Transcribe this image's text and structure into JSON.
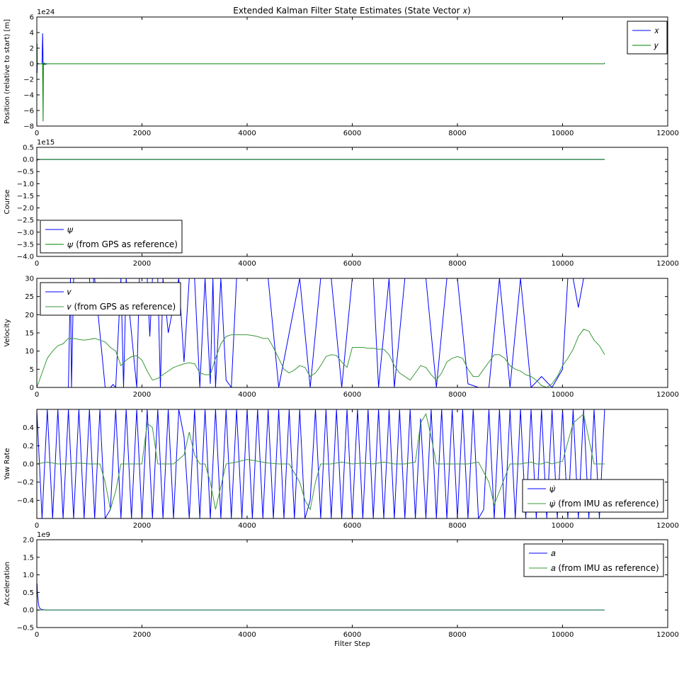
{
  "figure": {
    "title": "Extended Kalman Filter State Estimates (State Vector 𝑥)"
  },
  "colors": {
    "blue": "#0000ff",
    "green": "#008000",
    "lightgreen": "#3a9a3a"
  },
  "chart_data": [
    {
      "type": "line",
      "id": "position",
      "ylabel": "Position (relative to start) [m]",
      "xlabel": "",
      "offset_text": "1e24",
      "xlim": [
        0,
        12000
      ],
      "ylim": [
        -8,
        6
      ],
      "xticks": [
        "0",
        "2000",
        "4000",
        "6000",
        "8000",
        "10000",
        "12000"
      ],
      "yticks": [
        "6",
        "4",
        "2",
        "0",
        "−2",
        "−4",
        "−6",
        "−8"
      ],
      "legend": {
        "placement": "top-right"
      },
      "series": [
        {
          "name": "𝑥",
          "color": "#0000ff",
          "x": [
            0,
            5,
            10,
            20,
            60,
            100,
            110,
            120,
            125,
            130,
            140,
            200,
            400,
            2000,
            6000,
            10000,
            10790,
            10800
          ],
          "y": [
            0,
            -1.2,
            0.1,
            0,
            0,
            0,
            3.9,
            0.1,
            0,
            -0.1,
            0,
            0,
            0,
            0,
            0,
            0,
            0,
            0.1
          ]
        },
        {
          "name": "𝑦",
          "color": "#008000",
          "x": [
            0,
            5,
            10,
            20,
            60,
            100,
            110,
            120,
            125,
            130,
            140,
            150,
            200,
            400,
            2000,
            6000,
            10000,
            10790,
            10800
          ],
          "y": [
            0,
            2.6,
            -0.1,
            0,
            0,
            0,
            0,
            -7.4,
            0,
            0,
            0.1,
            -0.1,
            0,
            0,
            0,
            0,
            0,
            0,
            0.1
          ]
        }
      ]
    },
    {
      "type": "line",
      "id": "course",
      "ylabel": "Course",
      "xlabel": "",
      "offset_text": "1e15",
      "xlim": [
        0,
        12000
      ],
      "ylim": [
        -4.0,
        0.5
      ],
      "xticks": [
        "0",
        "2000",
        "4000",
        "6000",
        "8000",
        "10000",
        "12000"
      ],
      "yticks": [
        "0.5",
        "0.0",
        "−0.5",
        "−1.0",
        "−1.5",
        "−2.0",
        "−2.5",
        "−3.0",
        "−3.5",
        "−4.0"
      ],
      "legend": {
        "placement": "bottom-left"
      },
      "series": [
        {
          "name": "𝜓",
          "color": "#0000ff",
          "x": [
            0,
            5,
            15,
            10800
          ],
          "y": [
            0,
            -0.05,
            0,
            0
          ]
        },
        {
          "name": "𝜓 (from GPS as reference)",
          "color": "#008000",
          "x": [
            0,
            10800
          ],
          "y": [
            0,
            0
          ]
        }
      ]
    },
    {
      "type": "line",
      "id": "velocity",
      "ylabel": "Velocity",
      "xlabel": "",
      "offset_text": "",
      "xlim": [
        0,
        12000
      ],
      "ylim": [
        0,
        30
      ],
      "xticks": [
        "0",
        "2000",
        "4000",
        "6000",
        "8000",
        "10000",
        "12000"
      ],
      "yticks": [
        "30",
        "25",
        "20",
        "15",
        "10",
        "5",
        "0"
      ],
      "legend": {
        "placement": "top-left"
      },
      "series": [
        {
          "name": "𝑣",
          "color": "#0000ff",
          "x": [
            0,
            100,
            300,
            600,
            640,
            660,
            700,
            800,
            900,
            1000,
            1060,
            1080,
            1100,
            1300,
            1400,
            1450,
            1500,
            1600,
            1650,
            1700,
            1900,
            1950,
            2000,
            2100,
            2150,
            2200,
            2300,
            2350,
            2400,
            2500,
            2700,
            2800,
            2900,
            3000,
            3100,
            3200,
            3300,
            3350,
            3400,
            3500,
            3600,
            3700,
            3800,
            4000,
            4400,
            4600,
            5000,
            5200,
            5400,
            5600,
            5800,
            6000,
            6200,
            6400,
            6500,
            6700,
            6800,
            7000,
            7200,
            7400,
            7600,
            7800,
            8000,
            8200,
            8400,
            8600,
            8800,
            9000,
            9200,
            9400,
            9600,
            9800,
            10000,
            10100,
            10200,
            10300,
            10400,
            10500,
            10600,
            10700,
            10800
          ],
          "y": [
            0,
            0,
            0,
            0,
            30,
            0,
            30,
            30,
            30,
            30,
            20,
            30,
            30,
            0,
            0,
            0.8,
            0,
            30,
            0,
            30,
            0,
            30,
            30,
            30,
            14,
            30,
            30,
            0,
            30,
            15,
            30,
            7,
            30,
            30,
            0,
            30,
            1,
            30,
            0,
            30,
            2,
            0,
            30,
            30,
            30,
            0,
            30,
            0,
            30,
            30,
            0,
            30,
            30,
            30,
            0,
            30,
            0,
            30,
            30,
            30,
            0,
            30,
            30,
            1,
            0,
            0,
            30,
            0,
            30,
            0,
            3,
            0,
            5,
            30,
            30,
            22,
            30,
            30,
            30,
            30,
            30
          ]
        },
        {
          "name": "𝑣 (from GPS as reference)",
          "color": "#3a9a3a",
          "x": [
            0,
            100,
            200,
            300,
            400,
            500,
            600,
            700,
            800,
            900,
            1000,
            1100,
            1200,
            1300,
            1400,
            1500,
            1600,
            1700,
            1800,
            1900,
            2000,
            2100,
            2200,
            2300,
            2400,
            2500,
            2600,
            2700,
            2800,
            2900,
            3000,
            3100,
            3200,
            3300,
            3400,
            3500,
            3600,
            3700,
            3800,
            3900,
            4000,
            4100,
            4200,
            4300,
            4400,
            4500,
            4600,
            4700,
            4800,
            4900,
            5000,
            5100,
            5200,
            5300,
            5400,
            5500,
            5600,
            5700,
            5800,
            5900,
            6000,
            6100,
            6200,
            6300,
            6400,
            6500,
            6600,
            6700,
            6800,
            6900,
            7000,
            7100,
            7200,
            7300,
            7400,
            7500,
            7600,
            7700,
            7800,
            7900,
            8000,
            8100,
            8200,
            8300,
            8400,
            8500,
            8600,
            8700,
            8800,
            8900,
            9000,
            9100,
            9200,
            9300,
            9400,
            9500,
            9600,
            9700,
            9800,
            9900,
            10000,
            10100,
            10200,
            10300,
            10400,
            10500,
            10600,
            10700,
            10800
          ],
          "y": [
            0,
            4,
            8,
            10,
            11.5,
            12,
            13.5,
            13.5,
            13.2,
            13,
            13.2,
            13.5,
            13,
            12.5,
            11,
            10,
            6,
            7.5,
            8.5,
            8.7,
            7.5,
            4.5,
            2,
            2.5,
            3.5,
            4.5,
            5.5,
            6,
            6.5,
            6.8,
            6.5,
            4,
            3.5,
            3.5,
            8,
            12,
            14,
            14.5,
            14.5,
            14.5,
            14.5,
            14.3,
            14,
            13.5,
            13.5,
            11,
            8,
            5,
            4,
            4.8,
            6,
            5.5,
            3,
            4,
            6,
            8.5,
            9,
            8.8,
            7,
            5.5,
            11,
            11,
            11,
            10.8,
            10.8,
            10.5,
            10.5,
            9,
            6,
            4,
            3,
            2,
            4,
            6,
            5.5,
            3.5,
            2,
            4,
            7,
            8,
            8.5,
            8,
            5,
            3,
            3,
            5,
            7,
            9,
            9,
            8,
            6,
            5,
            4.5,
            3.5,
            3,
            2,
            0.5,
            0,
            1,
            3,
            6,
            8,
            10.5,
            14,
            16,
            15.5,
            13,
            11.5,
            9
          ]
        }
      ]
    },
    {
      "type": "line",
      "id": "yaw_rate",
      "ylabel": "Yaw Rate",
      "xlabel": "",
      "offset_text": "",
      "xlim": [
        0,
        12000
      ],
      "ylim": [
        -0.6,
        0.6
      ],
      "xticks": [
        "0",
        "2000",
        "4000",
        "6000",
        "8000",
        "10000",
        "12000"
      ],
      "yticks": [
        "0.4",
        "0.2",
        "0.0",
        "−0.2",
        "−0.4"
      ],
      "legend": {
        "placement": "bottom-right"
      },
      "series": [
        {
          "name": "𝜓̇",
          "color": "#0000ff",
          "x": [
            0,
            100,
            200,
            300,
            400,
            500,
            600,
            700,
            800,
            900,
            1000,
            1100,
            1200,
            1300,
            1400,
            1500,
            1600,
            1700,
            1800,
            1900,
            2000,
            2100,
            2200,
            2300,
            2400,
            2500,
            2600,
            2700,
            2800,
            2900,
            3000,
            3100,
            3200,
            3300,
            3400,
            3500,
            3600,
            3700,
            3800,
            3900,
            4000,
            4100,
            4200,
            4300,
            4400,
            4500,
            4600,
            4700,
            4800,
            4900,
            5000,
            5100,
            5200,
            5300,
            5400,
            5500,
            5600,
            5700,
            5800,
            5900,
            6000,
            6100,
            6200,
            6300,
            6400,
            6500,
            6600,
            6700,
            6800,
            6900,
            7000,
            7100,
            7200,
            7300,
            7400,
            7500,
            7600,
            7700,
            7800,
            7900,
            8000,
            8100,
            8200,
            8300,
            8400,
            8500,
            8600,
            8700,
            8800,
            8900,
            9000,
            9100,
            9200,
            9300,
            9400,
            9500,
            9600,
            9700,
            9800,
            9900,
            10000,
            10100,
            10200,
            10300,
            10400,
            10500,
            10600,
            10700,
            10800
          ],
          "y": [
            0.6,
            -0.6,
            0.6,
            -0.6,
            0.6,
            -0.6,
            0.6,
            -0.6,
            0.6,
            -0.6,
            0.6,
            -0.6,
            0.6,
            -0.6,
            -0.5,
            0.6,
            -0.6,
            0.6,
            -0.6,
            0.6,
            -0.6,
            0.6,
            -0.6,
            0.6,
            -0.6,
            0.6,
            -0.6,
            0.6,
            0.3,
            -0.6,
            0.6,
            -0.6,
            0.6,
            -0.6,
            0.6,
            -0.6,
            0.6,
            -0.6,
            0.6,
            -0.6,
            0.6,
            -0.6,
            0.6,
            -0.6,
            0.6,
            -0.6,
            0.6,
            -0.6,
            0.6,
            -0.6,
            0.6,
            -0.6,
            -0.4,
            0.6,
            -0.6,
            0.6,
            -0.6,
            0.6,
            -0.6,
            0.6,
            -0.6,
            0.6,
            -0.6,
            0.6,
            -0.6,
            0.6,
            -0.6,
            0.6,
            -0.6,
            0.6,
            -0.6,
            0.6,
            -0.6,
            0.5,
            -0.6,
            0.6,
            -0.6,
            0.6,
            -0.6,
            0.6,
            -0.6,
            0.6,
            -0.6,
            0.6,
            -0.6,
            -0.5,
            0.6,
            -0.6,
            0.6,
            -0.6,
            0.6,
            -0.6,
            0.6,
            -0.6,
            0.6,
            -0.6,
            0.6,
            -0.6,
            0.6,
            -0.6,
            0.6,
            -0.6,
            0.6,
            -0.6,
            0.6,
            -0.6,
            0.6,
            -0.6,
            0.6
          ]
        },
        {
          "name": "𝜓̇ (from IMU as reference)",
          "color": "#3a9a3a",
          "x": [
            0,
            200,
            400,
            600,
            800,
            1000,
            1200,
            1300,
            1400,
            1500,
            1600,
            1800,
            2000,
            2100,
            2200,
            2300,
            2400,
            2600,
            2800,
            2900,
            3000,
            3100,
            3200,
            3300,
            3400,
            3600,
            3800,
            4000,
            4200,
            4400,
            4600,
            4800,
            5000,
            5100,
            5200,
            5300,
            5400,
            5600,
            5800,
            6000,
            6200,
            6400,
            6600,
            6800,
            7000,
            7200,
            7300,
            7400,
            7500,
            7600,
            7800,
            8000,
            8200,
            8400,
            8600,
            8700,
            8800,
            9000,
            9200,
            9400,
            9500,
            9600,
            9700,
            9800,
            10000,
            10200,
            10400,
            10600,
            10800
          ],
          "y": [
            0,
            0.02,
            0,
            0,
            0.01,
            0,
            0,
            -0.2,
            -0.5,
            -0.3,
            0,
            0,
            0,
            0.45,
            0.4,
            0,
            0,
            0,
            0.1,
            0.35,
            0.1,
            0,
            0,
            -0.2,
            -0.5,
            0,
            0.02,
            0.05,
            0.03,
            0.01,
            0,
            0,
            -0.2,
            -0.4,
            -0.5,
            -0.2,
            0,
            0,
            0.02,
            0,
            0.01,
            0,
            0.02,
            0,
            0,
            0.02,
            0.45,
            0.55,
            0.3,
            0,
            0,
            0,
            0,
            0.02,
            -0.2,
            -0.45,
            -0.3,
            0,
            0,
            0.02,
            0,
            0,
            0.02,
            0,
            0.03,
            0.45,
            0.55,
            0,
            0
          ]
        }
      ]
    },
    {
      "type": "line",
      "id": "acceleration",
      "ylabel": "Acceleration",
      "xlabel": "Filter Step",
      "offset_text": "1e9",
      "xlim": [
        0,
        12000
      ],
      "ylim": [
        -0.5,
        2.0
      ],
      "xticks": [
        "0",
        "2000",
        "4000",
        "6000",
        "8000",
        "10000",
        "12000"
      ],
      "yticks": [
        "2.0",
        "1.5",
        "1.0",
        "0.5",
        "0.0",
        "−0.5"
      ],
      "legend": {
        "placement": "top-right"
      },
      "series": [
        {
          "name": "𝑎",
          "color": "#0000ff",
          "x": [
            0,
            5,
            10,
            20,
            30,
            40,
            60,
            80,
            120,
            200,
            10800
          ],
          "y": [
            0.6,
            0.75,
            0.55,
            0.35,
            0.2,
            0.1,
            0.04,
            0.02,
            0.01,
            0,
            0
          ]
        },
        {
          "name": "𝑎 (from IMU as reference)",
          "color": "#3a9a3a",
          "x": [
            0,
            10800
          ],
          "y": [
            0,
            0
          ]
        }
      ]
    }
  ]
}
